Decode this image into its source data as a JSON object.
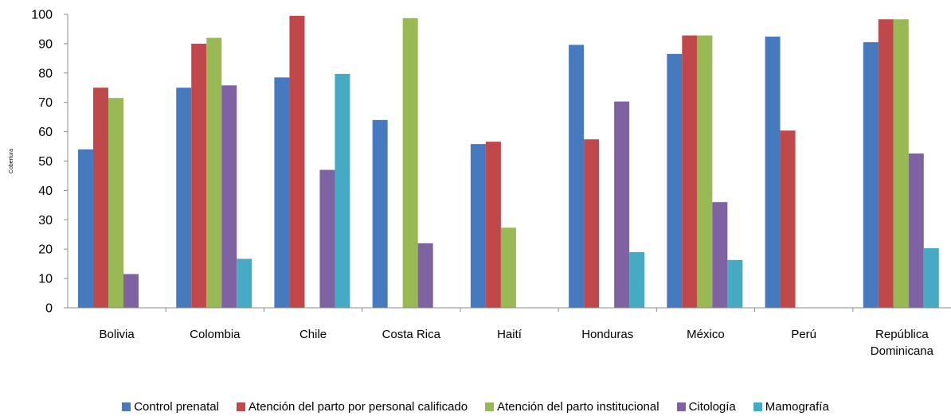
{
  "chart_data": {
    "type": "bar",
    "ylabel": "Cobertura",
    "xlabel": "",
    "ylim": [
      0,
      100
    ],
    "yticks": [
      0,
      10,
      20,
      30,
      40,
      50,
      60,
      70,
      80,
      90,
      100
    ],
    "grid": false,
    "legend_position": "bottom",
    "categories": [
      [
        "Bolivia"
      ],
      [
        "Colombia"
      ],
      [
        "Chile"
      ],
      [
        "Costa Rica"
      ],
      [
        "Haití"
      ],
      [
        "Honduras"
      ],
      [
        "México"
      ],
      [
        "Perú"
      ],
      [
        "República",
        "Dominicana"
      ]
    ],
    "series": [
      {
        "name": "Control prenatal",
        "color": "#4679BE",
        "values": [
          54,
          75,
          78.5,
          64,
          55.8,
          89.6,
          86.5,
          92.4,
          90.5
        ]
      },
      {
        "name": "Atención del parto por personal calificado",
        "color": "#C0474A",
        "values": [
          75,
          90,
          99.5,
          null,
          56.6,
          57.4,
          92.8,
          60.4,
          98.3
        ]
      },
      {
        "name": "Atención del parto institucional",
        "color": "#98B954",
        "values": [
          71.5,
          92,
          null,
          98.7,
          27.3,
          null,
          92.8,
          null,
          98.3
        ]
      },
      {
        "name": "Citología",
        "color": "#7F62A2",
        "values": [
          11.5,
          75.8,
          47,
          22,
          null,
          70.3,
          36,
          null,
          52.6
        ]
      },
      {
        "name": "Mamografía",
        "color": "#46AAC4",
        "values": [
          null,
          16.7,
          79.7,
          null,
          null,
          19,
          16.3,
          null,
          20.3
        ]
      }
    ]
  }
}
